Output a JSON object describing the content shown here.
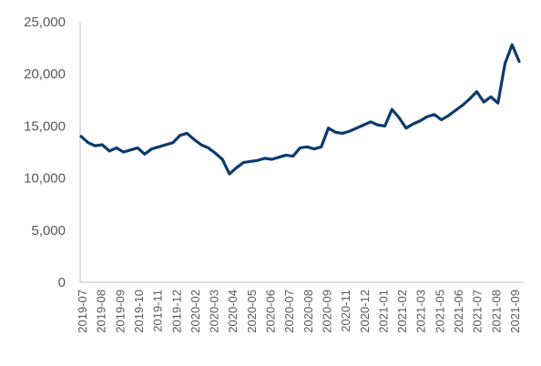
{
  "chart_data": {
    "type": "line",
    "title": "",
    "xlabel": "",
    "ylabel": "",
    "ylim": [
      0,
      25000
    ],
    "yticks": [
      0,
      5000,
      10000,
      15000,
      20000,
      25000
    ],
    "ytick_labels": [
      "0",
      "5,000",
      "10,000",
      "15,000",
      "20,000",
      "25,000"
    ],
    "xtick_labels": [
      "2019-07",
      "2019-08",
      "2019-09",
      "2019-10",
      "2019-11",
      "2019-12",
      "2020-02",
      "2020-03",
      "2020-04",
      "2020-05",
      "2020-06",
      "2020-07",
      "2020-08",
      "2020-09",
      "2020-11",
      "2020-12",
      "2021-01",
      "2021-02",
      "2021-03",
      "2021-05",
      "2021-06",
      "2021-07",
      "2021-08",
      "2021-09"
    ],
    "grid": false,
    "legend": "none",
    "line_color": "#0e3a6b",
    "series": [
      {
        "x": [
          "2019-07",
          "2019-07",
          "2019-07",
          "2019-08",
          "2019-08",
          "2019-08",
          "2019-09",
          "2019-09",
          "2019-09",
          "2019-10",
          "2019-10",
          "2019-11",
          "2019-11",
          "2019-12",
          "2019-12",
          "2019-12",
          "2020-01",
          "2020-02",
          "2020-02",
          "2020-02",
          "2020-03",
          "2020-03",
          "2020-03",
          "2020-04",
          "2020-04",
          "2020-05",
          "2020-05",
          "2020-06",
          "2020-06",
          "2020-07",
          "2020-07",
          "2020-08",
          "2020-08",
          "2020-09",
          "2020-09",
          "2020-10",
          "2020-10",
          "2020-11",
          "2020-11",
          "2020-12",
          "2020-12",
          "2021-01",
          "2021-01",
          "2021-02",
          "2021-02",
          "2021-03",
          "2021-03",
          "2021-04",
          "2021-04",
          "2021-05",
          "2021-05",
          "2021-06",
          "2021-06",
          "2021-07",
          "2021-07",
          "2021-08",
          "2021-08",
          "2021-08",
          "2021-08",
          "2021-09",
          "2021-09",
          "2021-09",
          "2021-09"
        ],
        "values": [
          14000,
          13400,
          13100,
          13200,
          12600,
          12900,
          12500,
          12700,
          12900,
          12300,
          12800,
          13000,
          13200,
          13400,
          14100,
          14300,
          13700,
          13200,
          12900,
          12400,
          11800,
          10400,
          11000,
          11500,
          11600,
          11700,
          11900,
          11800,
          12000,
          12200,
          12100,
          12900,
          13000,
          12800,
          13000,
          14800,
          14400,
          14300,
          14500,
          14800,
          15100,
          15400,
          15100,
          15000,
          16600,
          15800,
          14800,
          15200,
          15500,
          15900,
          16100,
          15600,
          16000,
          16500,
          17000,
          17600,
          18300,
          17300,
          17800,
          17200,
          21000,
          22800,
          21200
        ]
      }
    ]
  }
}
